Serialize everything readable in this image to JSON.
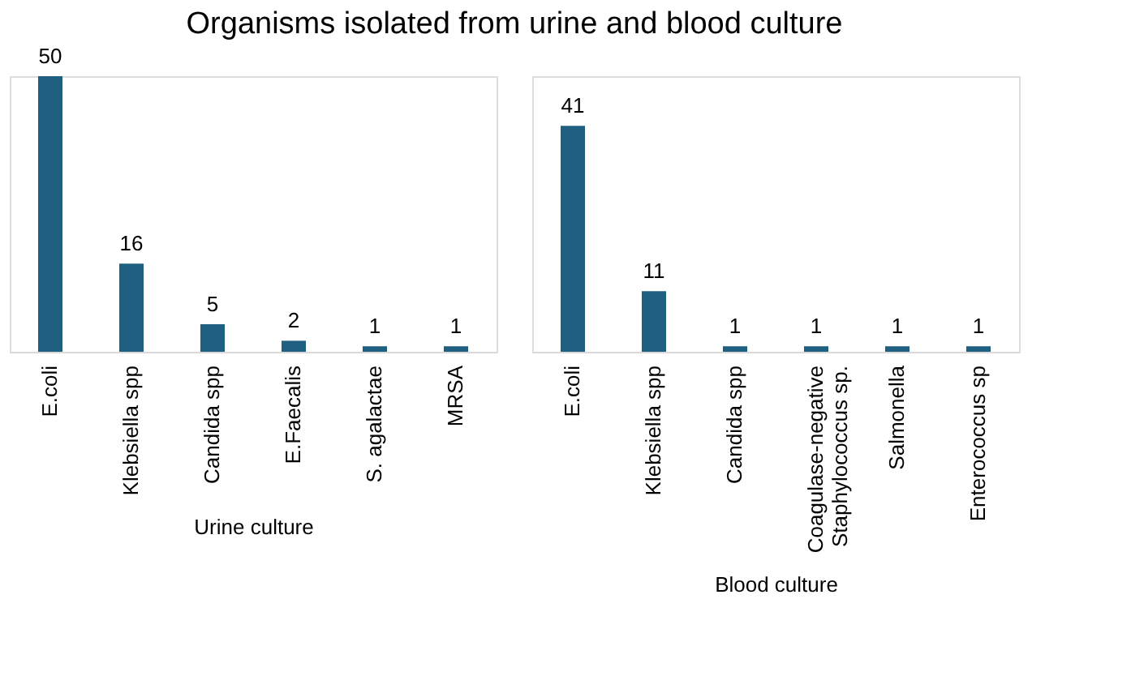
{
  "chart_data": [
    {
      "type": "bar",
      "title": "Organisms isolated from urine and blood culture",
      "xlabel": "Urine culture",
      "categories": [
        "E.coli",
        "Klebsiella spp",
        "Candida spp",
        "E.Faecalis",
        "S. agalactae",
        "MRSA"
      ],
      "values": [
        50,
        16,
        5,
        2,
        1,
        1
      ],
      "color": "#1f5f80",
      "data_labels": true
    },
    {
      "type": "bar",
      "xlabel": "Blood culture",
      "categories": [
        "E.coli",
        "Klebsiella spp",
        "Candida spp",
        "Coagulase-negative Staphylococcus sp.",
        "Salmonella",
        "Enterococcus sp"
      ],
      "values": [
        41,
        11,
        1,
        1,
        1,
        1
      ],
      "color": "#1f5f80",
      "data_labels": true
    }
  ]
}
